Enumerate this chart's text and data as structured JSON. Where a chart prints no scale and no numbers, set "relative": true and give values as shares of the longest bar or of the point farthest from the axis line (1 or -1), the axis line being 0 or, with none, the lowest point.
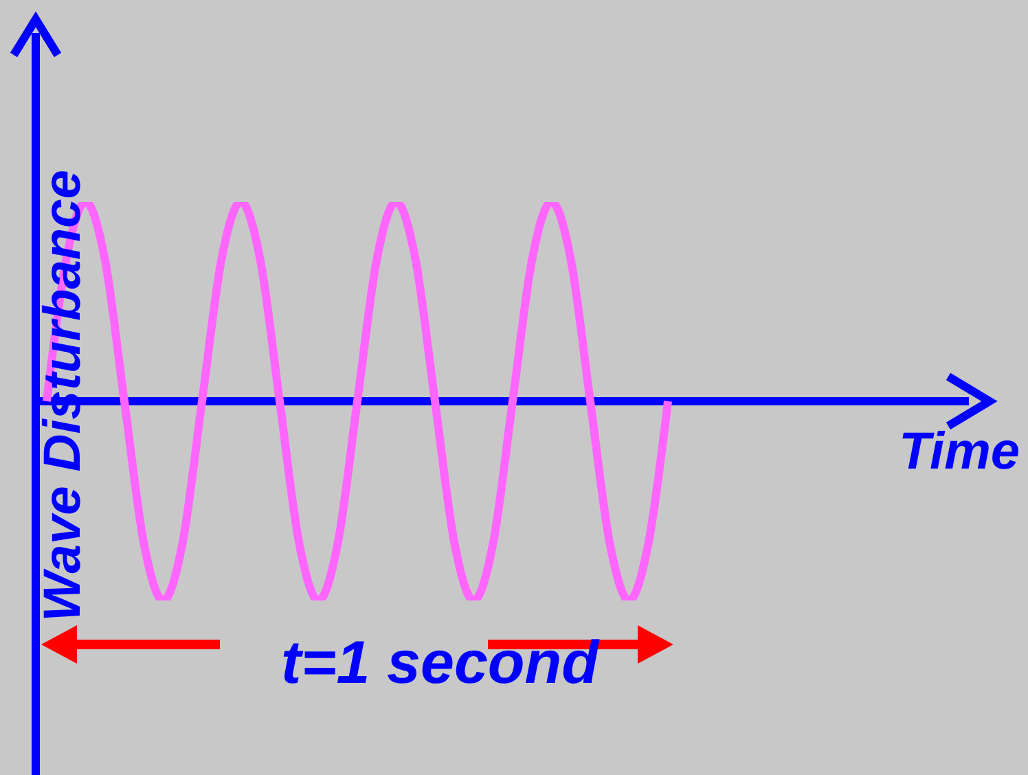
{
  "chart_data": {
    "type": "line",
    "relative": true,
    "xlabel": "Time",
    "ylabel": "Wave Disturbance",
    "annotations": [
      "t=1 second"
    ],
    "ref_lines": [
      {
        "axis": "y",
        "value": 0,
        "color": "#0000ff"
      }
    ],
    "categories": [
      null,
      null,
      null,
      null,
      null,
      null,
      null,
      null,
      null,
      null,
      null,
      null,
      null,
      null,
      null,
      null,
      null,
      null,
      null,
      null,
      null,
      null,
      null,
      null,
      null,
      null,
      null,
      null,
      null,
      null,
      null,
      null,
      null
    ],
    "series": [
      {
        "color": "#ff66ff",
        "values": [
          0,
          0.71,
          1,
          0.71,
          0,
          -0.71,
          -1,
          -0.71,
          0,
          0.71,
          1,
          0.71,
          0,
          -0.71,
          -1,
          -0.71,
          0,
          0.71,
          1,
          0.71,
          0,
          -0.71,
          -1,
          -0.71,
          0,
          0.71,
          1,
          0.71,
          0,
          -0.71,
          -1,
          -0.71,
          0
        ]
      }
    ]
  }
}
